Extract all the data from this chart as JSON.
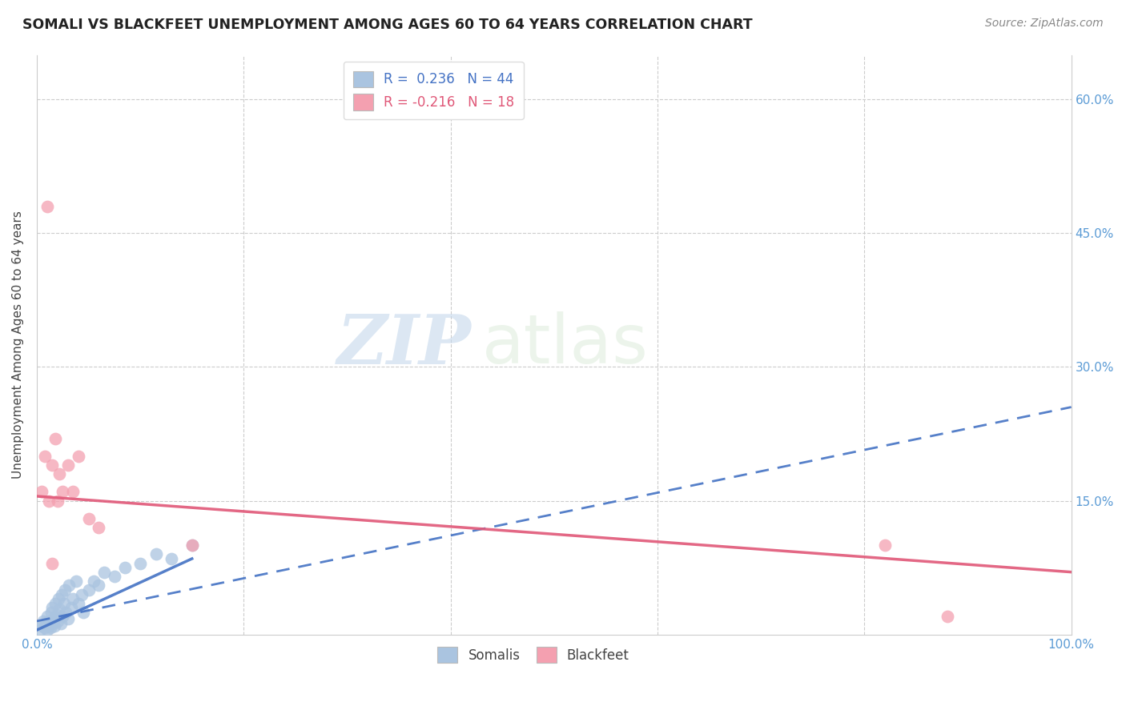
{
  "title": "SOMALI VS BLACKFEET UNEMPLOYMENT AMONG AGES 60 TO 64 YEARS CORRELATION CHART",
  "source": "Source: ZipAtlas.com",
  "ylabel": "Unemployment Among Ages 60 to 64 years",
  "xlim": [
    0,
    1.0
  ],
  "ylim": [
    0,
    0.65
  ],
  "somali_R": 0.236,
  "somali_N": 44,
  "blackfeet_R": -0.216,
  "blackfeet_N": 18,
  "somali_color": "#aac4e0",
  "blackfeet_color": "#f4a0b0",
  "somali_line_color": "#4472c4",
  "blackfeet_line_color": "#e05878",
  "legend_label_somali": "Somalis",
  "legend_label_blackfeet": "Blackfeet",
  "watermark_zip": "ZIP",
  "watermark_atlas": "atlas",
  "somali_x": [
    0.003,
    0.005,
    0.006,
    0.008,
    0.009,
    0.01,
    0.01,
    0.011,
    0.012,
    0.013,
    0.014,
    0.015,
    0.015,
    0.016,
    0.017,
    0.018,
    0.019,
    0.02,
    0.021,
    0.022,
    0.023,
    0.024,
    0.025,
    0.026,
    0.027,
    0.028,
    0.03,
    0.031,
    0.033,
    0.035,
    0.038,
    0.04,
    0.043,
    0.045,
    0.05,
    0.055,
    0.06,
    0.065,
    0.075,
    0.085,
    0.1,
    0.115,
    0.13,
    0.15
  ],
  "somali_y": [
    0.005,
    0.01,
    0.015,
    0.008,
    0.012,
    0.005,
    0.02,
    0.01,
    0.015,
    0.008,
    0.025,
    0.012,
    0.03,
    0.018,
    0.01,
    0.035,
    0.022,
    0.015,
    0.04,
    0.028,
    0.012,
    0.045,
    0.02,
    0.035,
    0.05,
    0.025,
    0.018,
    0.055,
    0.03,
    0.04,
    0.06,
    0.035,
    0.045,
    0.025,
    0.05,
    0.06,
    0.055,
    0.07,
    0.065,
    0.075,
    0.08,
    0.09,
    0.085,
    0.1
  ],
  "blackfeet_x": [
    0.005,
    0.008,
    0.01,
    0.012,
    0.015,
    0.018,
    0.02,
    0.022,
    0.025,
    0.03,
    0.035,
    0.04,
    0.05,
    0.06,
    0.15,
    0.82,
    0.88,
    0.015
  ],
  "blackfeet_y": [
    0.16,
    0.2,
    0.48,
    0.15,
    0.19,
    0.22,
    0.15,
    0.18,
    0.16,
    0.19,
    0.16,
    0.2,
    0.13,
    0.12,
    0.1,
    0.1,
    0.02,
    0.08
  ],
  "grid_color": "#cccccc",
  "tick_color": "#5b9bd5",
  "title_color": "#222222",
  "label_color": "#444444",
  "source_color": "#888888"
}
